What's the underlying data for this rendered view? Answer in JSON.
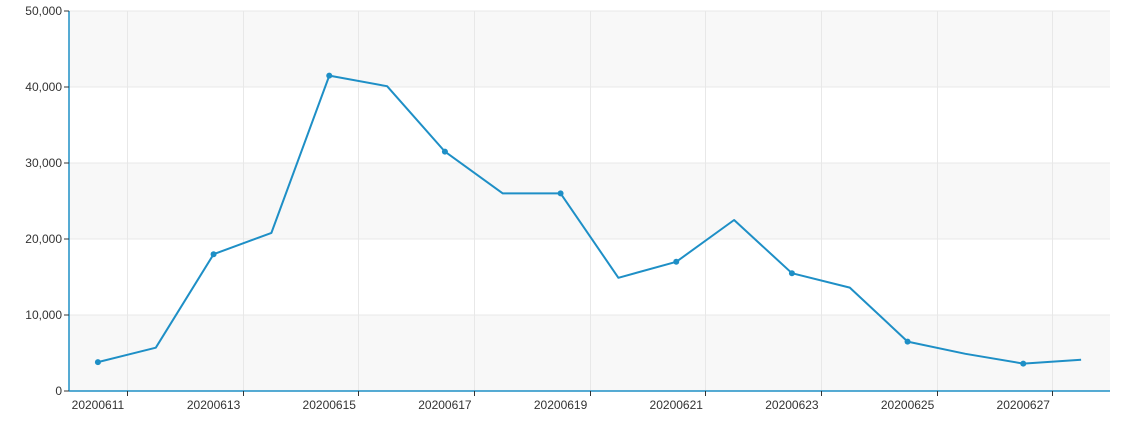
{
  "chart_data": {
    "type": "line",
    "title": "",
    "xlabel": "",
    "ylabel": "",
    "x": [
      "20200611",
      "20200612",
      "20200613",
      "20200614",
      "20200615",
      "20200616",
      "20200617",
      "20200618",
      "20200619",
      "20200620",
      "20200621",
      "20200622",
      "20200623",
      "20200624",
      "20200625",
      "20200626",
      "20200627",
      "20200628"
    ],
    "x_tick_labels": [
      "20200611",
      "20200613",
      "20200615",
      "20200617",
      "20200619",
      "20200621",
      "20200623",
      "20200625",
      "20200627"
    ],
    "y_tick_labels": [
      "0",
      "10,000",
      "20,000",
      "30,000",
      "40,000",
      "50,000"
    ],
    "y_ticks": [
      0,
      10000,
      20000,
      30000,
      40000,
      50000
    ],
    "ylim": [
      0,
      50000
    ],
    "grid": true,
    "legend": "none",
    "series": [
      {
        "values": [
          3800,
          5700,
          18000,
          20800,
          41500,
          40100,
          31500,
          26000,
          26000,
          14900,
          17000,
          22500,
          15500,
          13600,
          6500,
          4900,
          3600,
          4100
        ],
        "markers": [
          true,
          false,
          true,
          false,
          true,
          false,
          true,
          false,
          true,
          false,
          true,
          false,
          true,
          false,
          true,
          false,
          true,
          false
        ]
      }
    ],
    "colors": {
      "line": "#1e8fc6",
      "axis": "#1e8fc6",
      "band": "#f8f8f8",
      "grid": "#e8e8e8"
    }
  }
}
